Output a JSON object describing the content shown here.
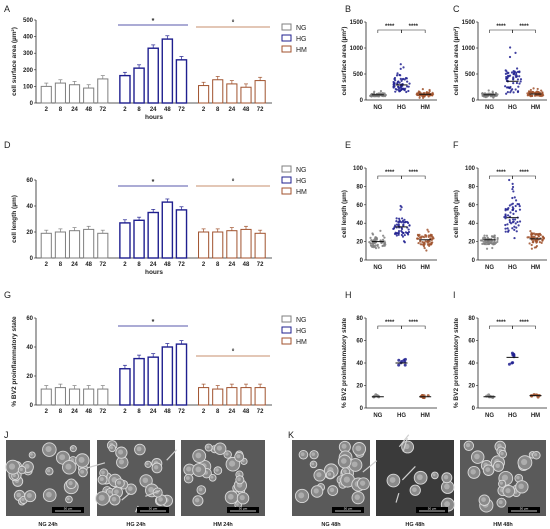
{
  "colors": {
    "NG": "#7f7f7f",
    "HG": "#1f1f8f",
    "HM": "#a0522d",
    "HG_fill": "#e7e7f5",
    "HM_line": "#b46a3c"
  },
  "panel_labels": [
    "A",
    "B",
    "C",
    "D",
    "E",
    "F",
    "G",
    "H",
    "I",
    "J",
    "K"
  ],
  "legend_items": [
    "NG",
    "HG",
    "HM"
  ],
  "x_axis_title": "hours",
  "significance": {
    "star": "*",
    "circle": "°",
    "pair": "****"
  },
  "micrographs": [
    {
      "caption": "NG 24h",
      "scale": "50 µm"
    },
    {
      "caption": "HG 24h",
      "scale": "50 µm"
    },
    {
      "caption": "HM 24h",
      "scale": "50 µm"
    },
    {
      "caption": "NG 48h",
      "scale": "50 µm"
    },
    {
      "caption": "HG 48h",
      "scale": "50 µm"
    },
    {
      "caption": "HM 48h",
      "scale": "50 µm"
    }
  ],
  "chart_data": [
    {
      "panel": "A",
      "type": "bar",
      "ylabel": "cell surface area (µm²)",
      "xlabel": "hours",
      "ylim": [
        0,
        500
      ],
      "yticks": [
        0,
        100,
        200,
        300,
        400,
        500
      ],
      "categories": [
        "2",
        "8",
        "24",
        "48",
        "72"
      ],
      "series": [
        {
          "name": "NG",
          "values": [
            100,
            120,
            110,
            90,
            145
          ]
        },
        {
          "name": "HG",
          "values": [
            165,
            210,
            330,
            385,
            260
          ]
        },
        {
          "name": "HM",
          "values": [
            105,
            140,
            115,
            95,
            135
          ]
        }
      ]
    },
    {
      "panel": "B",
      "type": "scatter",
      "ylabel": "cell surface area (µm²)",
      "ylim": [
        0,
        1500
      ],
      "yticks": [
        0,
        500,
        1000,
        1500
      ],
      "categories": [
        "NG",
        "HG",
        "HM"
      ],
      "means": [
        100,
        290,
        110
      ],
      "ranges": [
        [
          45,
          180
        ],
        [
          110,
          720
        ],
        [
          40,
          230
        ]
      ]
    },
    {
      "panel": "C",
      "type": "scatter",
      "ylabel": "cell surface area (µm²)",
      "ylim": [
        0,
        1500
      ],
      "yticks": [
        0,
        500,
        1000,
        1500
      ],
      "categories": [
        "NG",
        "HG",
        "HM"
      ],
      "means": [
        100,
        360,
        115
      ],
      "ranges": [
        [
          40,
          190
        ],
        [
          90,
          1050
        ],
        [
          40,
          230
        ]
      ]
    },
    {
      "panel": "D",
      "type": "bar",
      "ylabel": "cell length (µm)",
      "xlabel": "hours",
      "ylim": [
        0,
        60
      ],
      "yticks": [
        0,
        20,
        40,
        60
      ],
      "categories": [
        "2",
        "8",
        "24",
        "48",
        "72"
      ],
      "series": [
        {
          "name": "NG",
          "values": [
            19,
            20,
            21,
            22,
            19
          ]
        },
        {
          "name": "HG",
          "values": [
            27,
            29,
            35,
            43,
            37
          ]
        },
        {
          "name": "HM",
          "values": [
            20,
            20,
            21,
            22,
            19
          ]
        }
      ]
    },
    {
      "panel": "E",
      "type": "scatter",
      "ylabel": "cell length (µm)",
      "ylim": [
        0,
        100
      ],
      "yticks": [
        0,
        20,
        40,
        60,
        80,
        100
      ],
      "categories": [
        "NG",
        "HG",
        "HM"
      ],
      "means": [
        20,
        36,
        22
      ],
      "ranges": [
        [
          10,
          32
        ],
        [
          18,
          60
        ],
        [
          9,
          36
        ]
      ]
    },
    {
      "panel": "F",
      "type": "scatter",
      "ylabel": "cell length (µm)",
      "ylim": [
        0,
        100
      ],
      "yticks": [
        0,
        20,
        40,
        60,
        80,
        100
      ],
      "categories": [
        "NG",
        "HG",
        "HM"
      ],
      "means": [
        22,
        46,
        23
      ],
      "ranges": [
        [
          12,
          34
        ],
        [
          20,
          88
        ],
        [
          10,
          36
        ]
      ]
    },
    {
      "panel": "G",
      "type": "bar",
      "ylabel": "% BV2 proinflammatory state",
      "ylim": [
        0,
        60
      ],
      "yticks": [
        0,
        20,
        40,
        60
      ],
      "categories": [
        "2",
        "8",
        "24",
        "48",
        "72"
      ],
      "series": [
        {
          "name": "NG",
          "values": [
            11,
            12,
            11,
            11,
            11
          ]
        },
        {
          "name": "HG",
          "values": [
            25,
            32,
            33,
            40,
            42
          ]
        },
        {
          "name": "HM",
          "values": [
            12,
            11,
            12,
            12,
            12
          ]
        }
      ]
    },
    {
      "panel": "H",
      "type": "scatter",
      "ylabel": "% BV2 proinflammatory state",
      "ylim": [
        0,
        80
      ],
      "yticks": [
        0,
        20,
        40,
        60,
        80
      ],
      "categories": [
        "NG",
        "HG",
        "HM"
      ],
      "means": [
        10,
        40,
        10
      ],
      "ranges": [
        [
          8,
          12
        ],
        [
          30,
          50
        ],
        [
          8,
          13
        ]
      ]
    },
    {
      "panel": "I",
      "type": "scatter",
      "ylabel": "% BV2 proinflammatory state",
      "ylim": [
        0,
        80
      ],
      "yticks": [
        0,
        20,
        40,
        60,
        80
      ],
      "categories": [
        "NG",
        "HG",
        "HM"
      ],
      "means": [
        10,
        45,
        11
      ],
      "ranges": [
        [
          9,
          12
        ],
        [
          32,
          55
        ],
        [
          9,
          13
        ]
      ]
    }
  ]
}
